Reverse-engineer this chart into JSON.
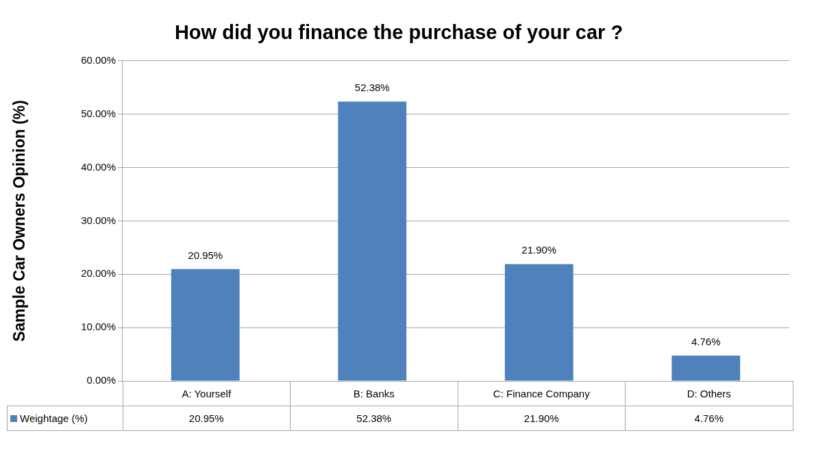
{
  "chart_data": {
    "type": "bar",
    "title": "How did you finance the purchase of your car ?",
    "ylabel": "Sample Car Owners Opinion (%)",
    "categories": [
      "A: Yourself",
      "B: Banks",
      "C: Finance Company",
      "D: Others"
    ],
    "series": [
      {
        "name": "Weightage (%)",
        "color": "#4f81bd",
        "values": [
          20.95,
          52.38,
          21.9,
          4.76
        ],
        "value_labels": [
          "20.95%",
          "52.38%",
          "21.90%",
          "4.76%"
        ]
      }
    ],
    "ylim": [
      0,
      60
    ],
    "yticks": [
      {
        "value": 0,
        "label": "0.00%"
      },
      {
        "value": 10,
        "label": "10.00%"
      },
      {
        "value": 20,
        "label": "20.00%"
      },
      {
        "value": 30,
        "label": "30.00%"
      },
      {
        "value": 40,
        "label": "40.00%"
      },
      {
        "value": 50,
        "label": "50.00%"
      },
      {
        "value": 60,
        "label": "60.00%"
      }
    ],
    "grid": "y",
    "legend": "bottom"
  }
}
